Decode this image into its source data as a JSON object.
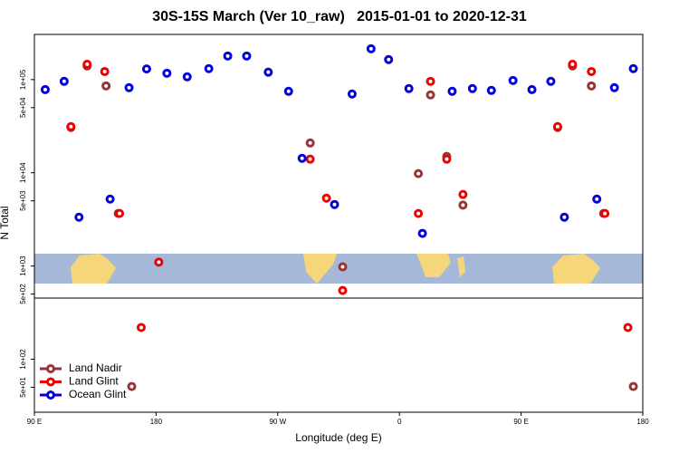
{
  "chart_data": {
    "type": "scatter",
    "title": "30S-15S March (Ver 10_raw)   2015-01-01 to 2020-12-31",
    "x_label": "Longitude (deg E)",
    "y_label": "N Total",
    "log_y": true,
    "legend": "bottom-left",
    "xlim": [
      90,
      540
    ],
    "xticks": [
      {
        "value": 90,
        "label": "90 E"
      },
      180,
      {
        "value": 270,
        "label": "90 W"
      },
      {
        "value": 360,
        "label": "0"
      },
      {
        "value": 450,
        "label": "90 E"
      },
      {
        "value": 540,
        "label": "180"
      }
    ],
    "ylim": [
      27,
      305000
    ],
    "yticks": [
      {
        "value": 50,
        "label": "5e+01"
      },
      {
        "value": 100,
        "label": "1e+02"
      },
      {
        "value": 500,
        "label": "5e+02"
      },
      {
        "value": 1000,
        "label": "1e+03"
      },
      {
        "value": 5000,
        "label": "5e+03"
      },
      {
        "value": 10000,
        "label": "1e+04"
      },
      {
        "value": 50000,
        "label": "5e+04"
      },
      {
        "value": 100000,
        "label": "1e+05"
      }
    ],
    "series": [
      {
        "name": "Land Nadir",
        "color": "#993333",
        "x": [
          117,
          129,
          143,
          152,
          162,
          294,
          318,
          374,
          383,
          395,
          407,
          477,
          488,
          502,
          511,
          533
        ],
        "values": [
          30600,
          140000,
          85500,
          3660,
          51,
          20900,
          980,
          9800,
          68400,
          15000,
          4500,
          30600,
          140000,
          85500,
          3660,
          51
        ]
      },
      {
        "name": "Land Glint",
        "color": "#ee0000",
        "x": [
          117,
          129,
          142,
          153,
          182,
          169,
          294,
          306,
          318,
          374,
          383,
          395,
          407,
          477,
          488,
          502,
          512,
          529
        ],
        "values": [
          31300,
          146000,
          122000,
          3660,
          1100,
          219,
          14000,
          5340,
          547,
          3660,
          95600,
          14000,
          5850,
          31300,
          146000,
          122000,
          3660,
          219
        ]
      },
      {
        "name": "Ocean Glint",
        "color": "#0000dd",
        "x": [
          98,
          112,
          123,
          146,
          160,
          173,
          188,
          203,
          219,
          233,
          247,
          263,
          278,
          288,
          312,
          325,
          339,
          352,
          367,
          377,
          399,
          414,
          428,
          444,
          458,
          472,
          482,
          506,
          519,
          533
        ],
        "values": [
          78000,
          95700,
          3340,
          5220,
          81800,
          130000,
          117000,
          107000,
          131000,
          179000,
          179000,
          120000,
          74800,
          14300,
          4570,
          70000,
          214000,
          164000,
          80000,
          2240,
          74800,
          80000,
          76500,
          97800,
          78000,
          95700,
          3340,
          5220,
          81800,
          131000
        ]
      }
    ]
  }
}
